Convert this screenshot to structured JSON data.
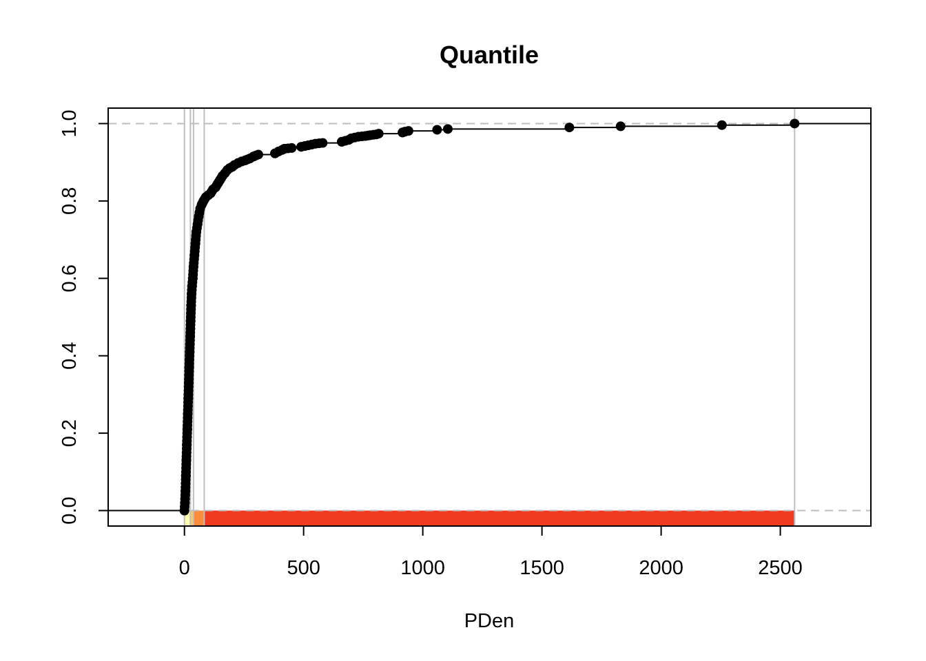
{
  "chart_data": {
    "type": "scatter",
    "title": "Quantile",
    "xlabel": "PDen",
    "ylabel": "",
    "xlim": [
      -320,
      2880
    ],
    "ylim": [
      -0.04,
      1.04
    ],
    "x_ticks": [
      0,
      500,
      1000,
      1500,
      2000,
      2500
    ],
    "y_ticks": [
      0.0,
      0.2,
      0.4,
      0.6,
      0.8,
      1.0
    ],
    "x_tick_labels": [
      "0",
      "500",
      "1000",
      "1500",
      "2000",
      "2500"
    ],
    "y_tick_labels": [
      "0.0",
      "0.2",
      "0.4",
      "0.6",
      "0.8",
      "1.0"
    ],
    "reference_lines_y": [
      0.0,
      1.0
    ],
    "class_breaks": [
      0,
      25,
      38,
      83,
      2560
    ],
    "class_colors": [
      "#FFFFB2",
      "#FECC5C",
      "#FD8D3C",
      "#F03B20",
      "#6B0020"
    ],
    "series_color": "#000000",
    "grid": false,
    "ecdf_points": [
      [
        0,
        0.0
      ],
      [
        2,
        0.02
      ],
      [
        4,
        0.05
      ],
      [
        6,
        0.09
      ],
      [
        8,
        0.13
      ],
      [
        10,
        0.17
      ],
      [
        12,
        0.21
      ],
      [
        14,
        0.25
      ],
      [
        16,
        0.29
      ],
      [
        18,
        0.33
      ],
      [
        20,
        0.37
      ],
      [
        22,
        0.41
      ],
      [
        24,
        0.45
      ],
      [
        26,
        0.49
      ],
      [
        28,
        0.53
      ],
      [
        30,
        0.56
      ],
      [
        32,
        0.58
      ],
      [
        35,
        0.6
      ],
      [
        38,
        0.63
      ],
      [
        42,
        0.66
      ],
      [
        46,
        0.69
      ],
      [
        50,
        0.72
      ],
      [
        55,
        0.74
      ],
      [
        60,
        0.76
      ],
      [
        66,
        0.78
      ],
      [
        72,
        0.79
      ],
      [
        80,
        0.8
      ],
      [
        90,
        0.81
      ],
      [
        100,
        0.815
      ],
      [
        110,
        0.82
      ],
      [
        120,
        0.83
      ],
      [
        130,
        0.835
      ],
      [
        140,
        0.845
      ],
      [
        150,
        0.855
      ],
      [
        160,
        0.865
      ],
      [
        170,
        0.872
      ],
      [
        180,
        0.88
      ],
      [
        190,
        0.885
      ],
      [
        200,
        0.888
      ],
      [
        210,
        0.893
      ],
      [
        225,
        0.898
      ],
      [
        240,
        0.902
      ],
      [
        255,
        0.905
      ],
      [
        275,
        0.91
      ],
      [
        290,
        0.915
      ],
      [
        310,
        0.92
      ],
      [
        380,
        0.923
      ],
      [
        395,
        0.928
      ],
      [
        410,
        0.932
      ],
      [
        420,
        0.935
      ],
      [
        450,
        0.937
      ],
      [
        490,
        0.94
      ],
      [
        505,
        0.942
      ],
      [
        520,
        0.944
      ],
      [
        535,
        0.946
      ],
      [
        550,
        0.948
      ],
      [
        580,
        0.95
      ],
      [
        660,
        0.953
      ],
      [
        690,
        0.958
      ],
      [
        700,
        0.962
      ],
      [
        730,
        0.966
      ],
      [
        760,
        0.968
      ],
      [
        780,
        0.97
      ],
      [
        805,
        0.972
      ],
      [
        815,
        0.974
      ],
      [
        915,
        0.977
      ],
      [
        925,
        0.979
      ],
      [
        940,
        0.981
      ],
      [
        1060,
        0.984
      ],
      [
        1105,
        0.986
      ],
      [
        1615,
        0.99
      ],
      [
        1830,
        0.993
      ],
      [
        2255,
        0.996
      ],
      [
        2560,
        1.0
      ]
    ]
  }
}
